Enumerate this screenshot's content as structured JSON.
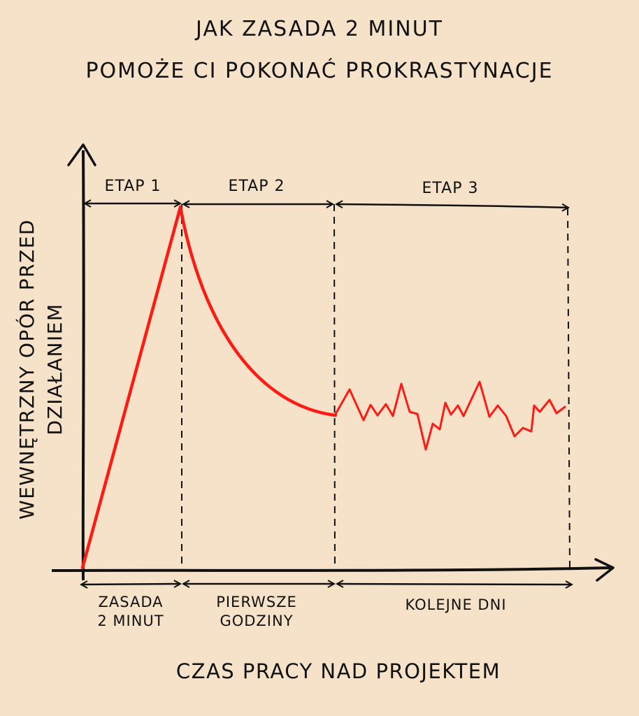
{
  "title": [
    "JAK ZASADA 2 MINUT",
    "POMOŻE CI POKONAĆ PROKRASTYNACJE"
  ],
  "chart_data": {
    "type": "line",
    "xlabel": "CZAS PRACY NAD PROJEKTEM",
    "ylabel": [
      "WEWNĘTRZNY OPÓR PRZED",
      "DZIAŁANIEM"
    ],
    "stages_top": [
      "ETAP 1",
      "ETAP 2",
      "ETAP 3"
    ],
    "stages_bottom": [
      [
        "ZASADA",
        "2 MINUT"
      ],
      [
        "PIERWSZE",
        "GODZINY"
      ],
      [
        "KOLEJNE DNI"
      ]
    ],
    "grid": false,
    "colors": {
      "line": "#ff1a14",
      "ink": "#111111",
      "background": "#f5e2c8"
    }
  }
}
